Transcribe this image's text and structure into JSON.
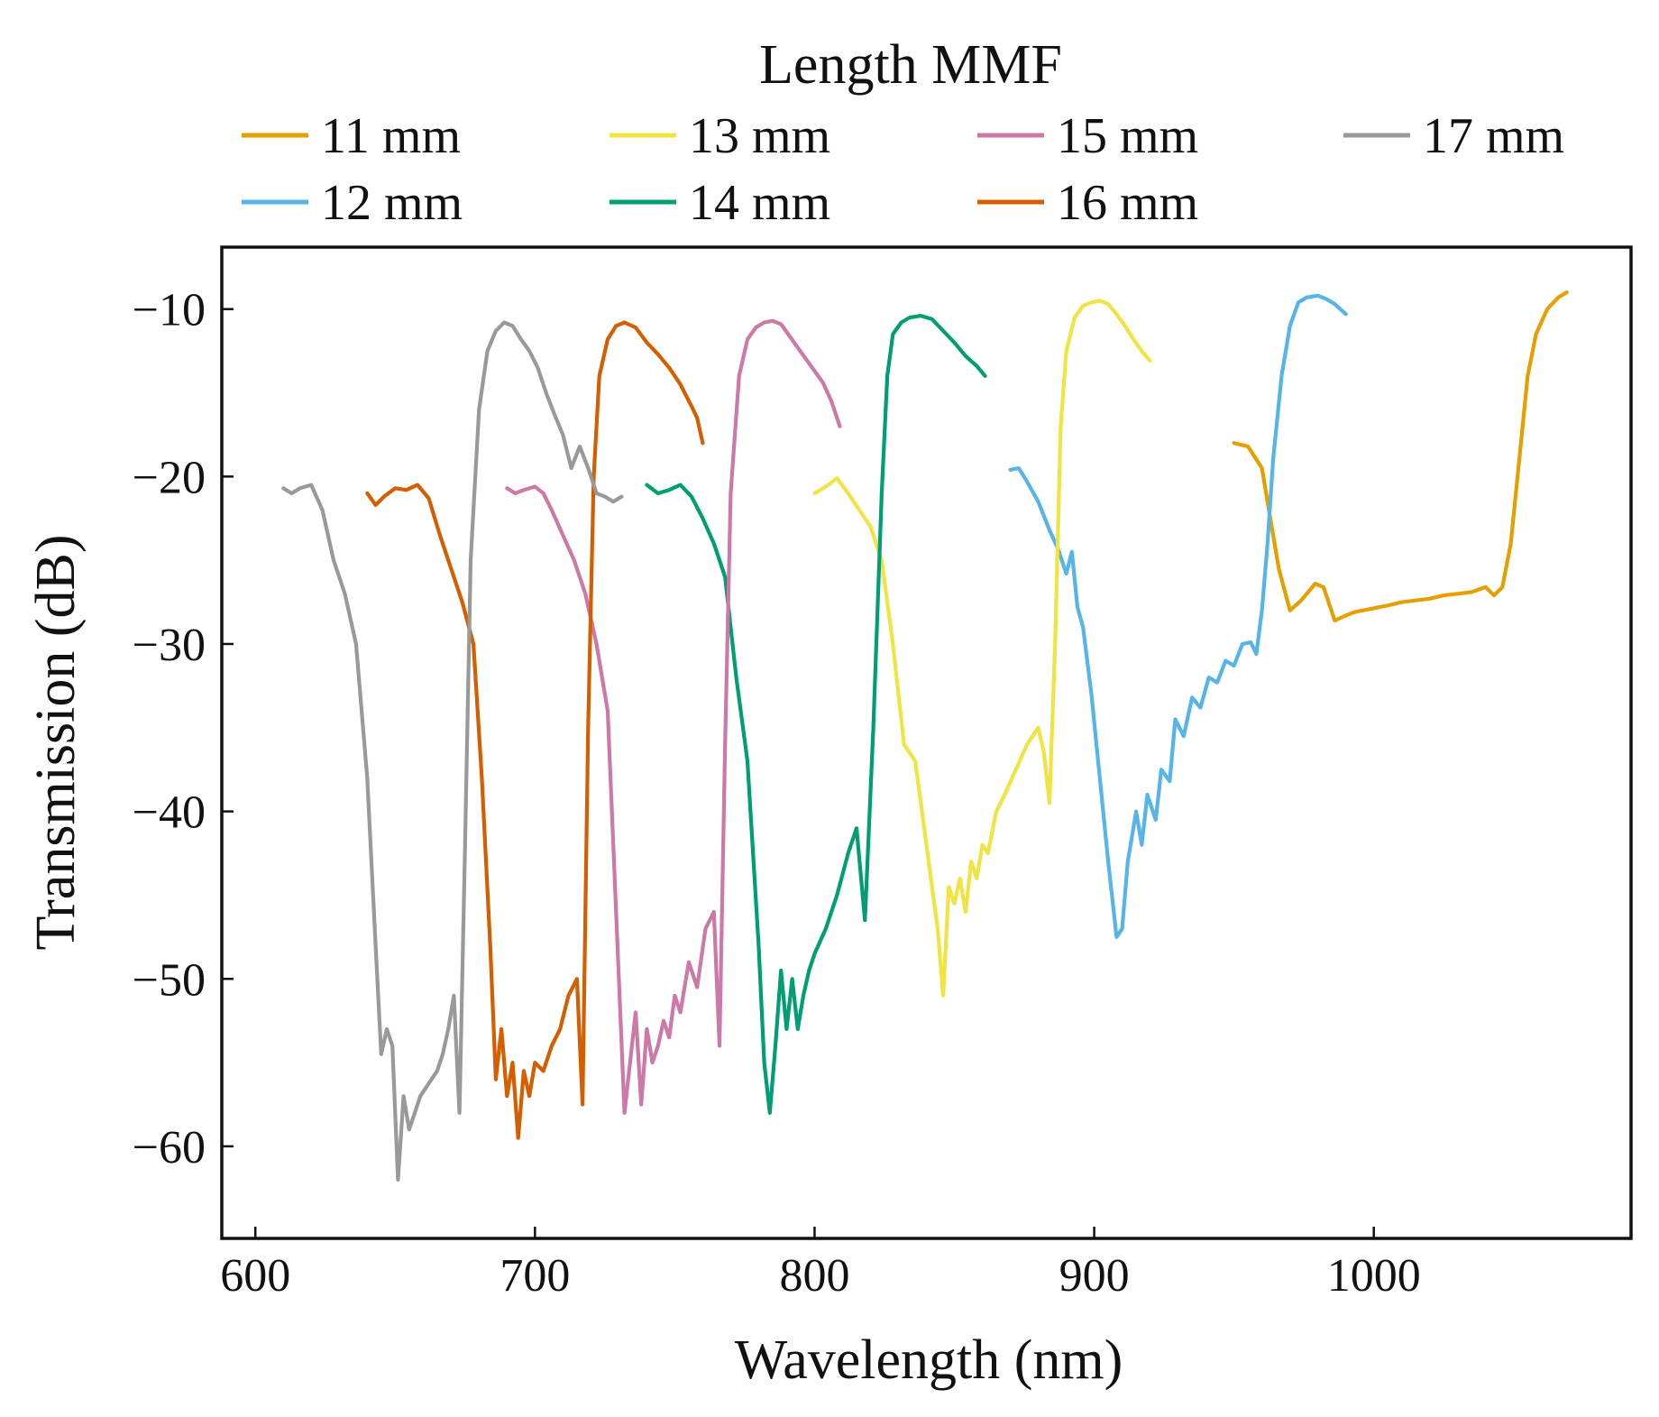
{
  "chart_data": {
    "type": "line",
    "xlabel": "Wavelength (nm)",
    "ylabel": "Transmission (dB)",
    "xlim": [
      588,
      1092
    ],
    "ylim": [
      -65.5,
      -6.3
    ],
    "xticks": [
      600,
      700,
      800,
      900,
      1000
    ],
    "yticks": [
      -10,
      -20,
      -30,
      -40,
      -50,
      -60
    ],
    "xtick_labels": [
      "600",
      "700",
      "800",
      "900",
      "1000"
    ],
    "ytick_labels": [
      "−10",
      "−20",
      "−30",
      "−40",
      "−50",
      "−60"
    ],
    "legend": {
      "title": "Length MMF",
      "placement": "top-outside",
      "columns": 4
    },
    "series": [
      {
        "name": "11 mm",
        "color": "#E69F00",
        "x": [
          950,
          955,
          960,
          963,
          966,
          970,
          974,
          977,
          979,
          982,
          986,
          990,
          993,
          996,
          999,
          1002,
          1005,
          1010,
          1015,
          1020,
          1025,
          1030,
          1035,
          1040,
          1043,
          1046,
          1049,
          1052,
          1055,
          1058,
          1062,
          1066,
          1069
        ],
        "y": [
          -18,
          -18.2,
          -19.5,
          -22.5,
          -25.5,
          -28,
          -27.4,
          -26.8,
          -26.4,
          -26.6,
          -28.6,
          -28.3,
          -28.1,
          -28,
          -27.9,
          -27.8,
          -27.7,
          -27.5,
          -27.4,
          -27.3,
          -27.1,
          -27,
          -26.9,
          -26.6,
          -27.1,
          -26.6,
          -24,
          -19,
          -14,
          -11.5,
          -10,
          -9.3,
          -9
        ]
      },
      {
        "name": "12 mm",
        "color": "#56B4E9",
        "x": [
          870,
          873,
          876,
          880,
          884,
          887,
          890,
          892,
          894,
          896,
          899,
          902,
          905,
          908,
          910,
          912,
          915,
          917,
          919,
          922,
          924,
          927,
          929,
          932,
          935,
          938,
          941,
          944,
          947,
          950,
          953,
          956,
          958,
          960,
          962,
          964,
          967,
          970,
          973,
          976,
          980,
          983,
          986,
          988,
          990
        ],
        "y": [
          -19.6,
          -19.5,
          -20.3,
          -21.5,
          -23.2,
          -24.3,
          -25.8,
          -24.5,
          -27.8,
          -29,
          -33,
          -38,
          -43,
          -47.5,
          -47,
          -43,
          -40,
          -42,
          -39,
          -40.5,
          -37.5,
          -38.2,
          -34.5,
          -35.5,
          -33.2,
          -33.8,
          -32,
          -32.3,
          -31,
          -31.3,
          -30,
          -29.9,
          -30.6,
          -28,
          -24,
          -19,
          -14,
          -11,
          -9.6,
          -9.3,
          -9.2,
          -9.4,
          -9.7,
          -10,
          -10.3
        ]
      },
      {
        "name": "13 mm",
        "color": "#F0E442",
        "x": [
          800,
          804,
          808,
          812,
          816,
          820,
          824,
          828,
          832,
          836,
          840,
          844,
          846,
          848,
          850,
          852,
          854,
          856,
          858,
          860,
          862,
          865,
          868,
          872,
          876,
          880,
          882,
          884,
          886,
          888,
          890,
          893,
          896,
          899,
          902,
          905,
          908,
          911,
          914,
          917,
          920
        ],
        "y": [
          -21,
          -20.6,
          -20.1,
          -21,
          -22,
          -23,
          -25,
          -30,
          -36,
          -37,
          -42,
          -47,
          -51,
          -44.5,
          -45.5,
          -44,
          -46,
          -43,
          -44,
          -42,
          -42.5,
          -40,
          -39,
          -37.5,
          -36,
          -35,
          -36.5,
          -39.5,
          -30,
          -17,
          -12.5,
          -10.5,
          -9.8,
          -9.6,
          -9.5,
          -9.7,
          -10.3,
          -11,
          -11.8,
          -12.5,
          -13.1
        ]
      },
      {
        "name": "14 mm",
        "color": "#009E73",
        "x": [
          740,
          744,
          748,
          752,
          756,
          760,
          764,
          768,
          772,
          776,
          780,
          782,
          784,
          786,
          788,
          790,
          792,
          794,
          796,
          798,
          800,
          804,
          808,
          812,
          815,
          818,
          821,
          824,
          826,
          828,
          831,
          834,
          838,
          842,
          846,
          850,
          854,
          858,
          861
        ],
        "y": [
          -20.5,
          -21,
          -20.8,
          -20.5,
          -21.2,
          -22.5,
          -24,
          -26,
          -32,
          -37,
          -48,
          -55,
          -58,
          -54,
          -49.5,
          -53,
          -50,
          -53,
          -51,
          -49.5,
          -48.5,
          -47,
          -45,
          -42.5,
          -41,
          -46.5,
          -35,
          -21,
          -14,
          -11.5,
          -10.8,
          -10.5,
          -10.4,
          -10.6,
          -11.3,
          -12,
          -12.8,
          -13.4,
          -14
        ]
      },
      {
        "name": "15 mm",
        "color": "#CC79A7",
        "x": [
          690,
          693,
          696,
          700,
          703,
          706,
          710,
          714,
          718,
          722,
          726,
          728,
          730,
          732,
          734,
          736,
          738,
          740,
          742,
          744,
          746,
          748,
          750,
          752,
          755,
          758,
          761,
          764,
          766,
          768,
          770,
          773,
          776,
          779,
          782,
          785,
          788,
          791,
          794,
          797,
          800,
          803,
          806,
          809
        ],
        "y": [
          -20.7,
          -21,
          -20.8,
          -20.6,
          -21,
          -22,
          -23.5,
          -25,
          -27,
          -30,
          -34,
          -42,
          -50,
          -58,
          -55,
          -52,
          -57.5,
          -53,
          -55,
          -54,
          -52.5,
          -53.5,
          -51,
          -52,
          -49,
          -50.5,
          -47,
          -46,
          -54,
          -36,
          -21,
          -14,
          -11.8,
          -11.1,
          -10.8,
          -10.7,
          -10.9,
          -11.6,
          -12.3,
          -13,
          -13.7,
          -14.4,
          -15.5,
          -17
        ]
      },
      {
        "name": "16 mm",
        "color": "#D55E00",
        "x": [
          640,
          643,
          646,
          650,
          654,
          658,
          662,
          666,
          670,
          674,
          678,
          681,
          684,
          686,
          688,
          690,
          692,
          694,
          696,
          698,
          700,
          703,
          706,
          709,
          712,
          715,
          717,
          719,
          721,
          723,
          726,
          729,
          732,
          736,
          740,
          744,
          748,
          752,
          756,
          758,
          760
        ],
        "y": [
          -21,
          -21.7,
          -21.2,
          -20.7,
          -20.8,
          -20.5,
          -21.3,
          -23.5,
          -25.5,
          -27.5,
          -30,
          -38,
          -48,
          -56,
          -53,
          -57,
          -55,
          -59.5,
          -55.5,
          -57,
          -55,
          -55.5,
          -54,
          -53,
          -51,
          -50,
          -57.5,
          -35,
          -20,
          -14,
          -11.8,
          -11,
          -10.8,
          -11.1,
          -12,
          -12.7,
          -13.5,
          -14.5,
          -15.8,
          -16.5,
          -18
        ]
      },
      {
        "name": "17 mm",
        "color": "#999999",
        "x": [
          610,
          613,
          616,
          620,
          624,
          628,
          632,
          636,
          640,
          643,
          645,
          647,
          649,
          651,
          653,
          655,
          657,
          659,
          661,
          663,
          665,
          667,
          669,
          671,
          673,
          675,
          677,
          680,
          683,
          686,
          689,
          692,
          695,
          698,
          701,
          704,
          707,
          710,
          713,
          716,
          719,
          722,
          725,
          728,
          731
        ],
        "y": [
          -20.7,
          -21,
          -20.7,
          -20.5,
          -22,
          -25,
          -27,
          -30,
          -38,
          -48,
          -54.5,
          -53,
          -54,
          -62,
          -57,
          -59,
          -58,
          -57,
          -56.5,
          -56,
          -55.5,
          -54.5,
          -53,
          -51,
          -58,
          -42,
          -25,
          -16,
          -12.5,
          -11.3,
          -10.8,
          -11,
          -11.8,
          -12.5,
          -13.5,
          -15,
          -16.3,
          -17.5,
          -19.5,
          -18.2,
          -19.5,
          -21,
          -21.2,
          -21.5,
          -21.2
        ]
      }
    ]
  }
}
